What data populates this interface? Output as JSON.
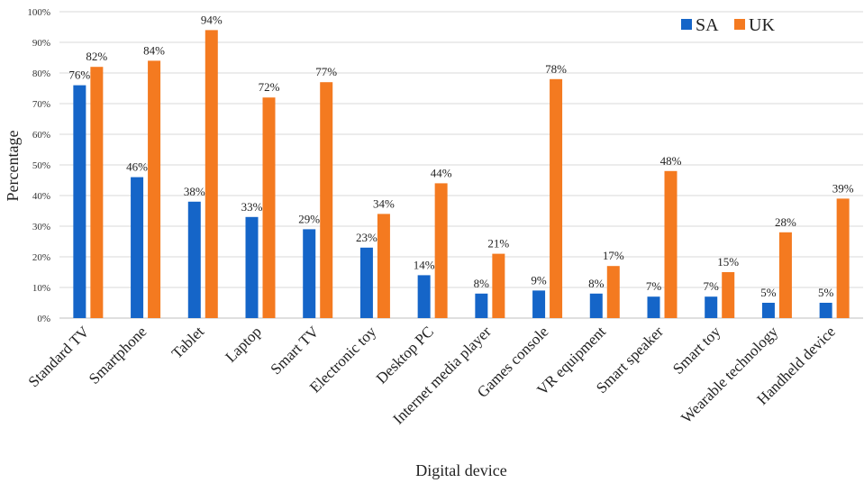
{
  "chart_data": {
    "type": "bar",
    "xlabel": "Digital device",
    "ylabel": "Percentage",
    "ylim": [
      0,
      100
    ],
    "y_tick_step": 10,
    "y_tick_suffix": "%",
    "grid": true,
    "legend_position": "top-right",
    "categories": [
      "Standard TV",
      "Smartphone",
      "Tablet",
      "Laptop",
      "Smart TV",
      "Electronic toy",
      "Desktop PC",
      "Internet media player",
      "Games console",
      "VR equipment",
      "Smart speaker",
      "Smart toy",
      "Wearable technology",
      "Handheld device"
    ],
    "series": [
      {
        "name": "SA",
        "color": "#1565c8",
        "values": [
          76,
          46,
          38,
          33,
          29,
          23,
          14,
          8,
          9,
          8,
          7,
          7,
          5,
          5
        ]
      },
      {
        "name": "UK",
        "color": "#f47a20",
        "values": [
          82,
          84,
          94,
          72,
          77,
          34,
          44,
          21,
          78,
          17,
          48,
          15,
          28,
          39
        ]
      }
    ]
  }
}
